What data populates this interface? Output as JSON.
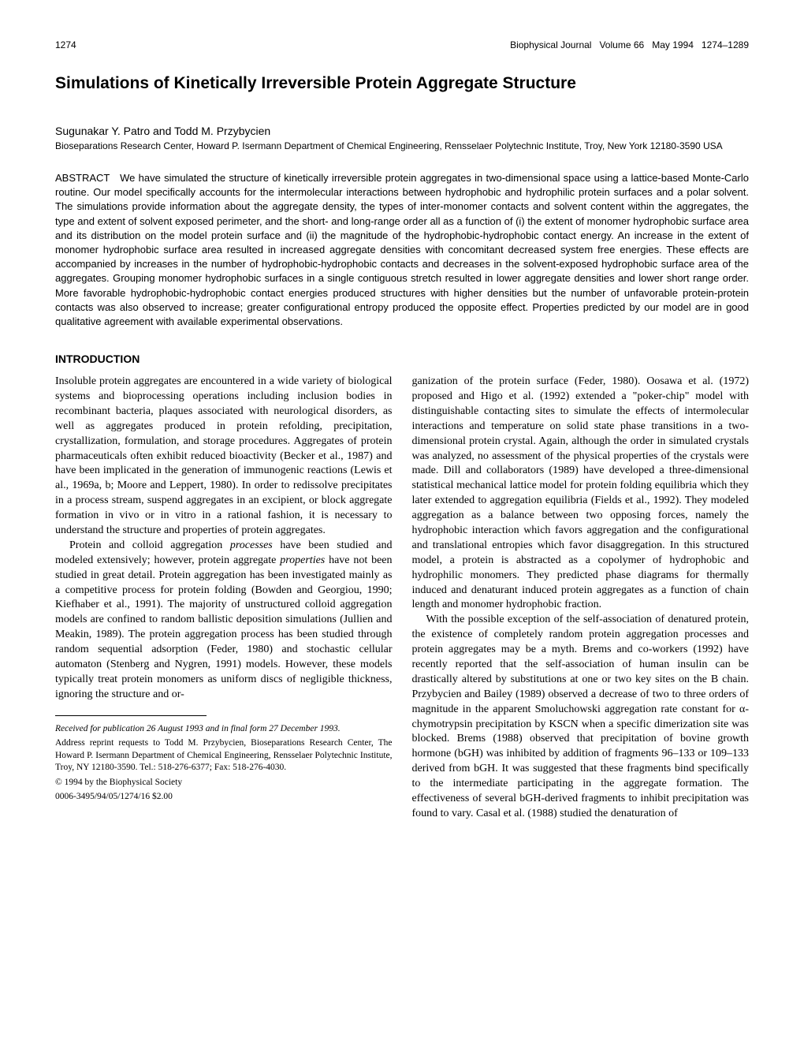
{
  "header": {
    "page_number": "1274",
    "journal": "Biophysical Journal",
    "volume": "Volume 66",
    "date": "May 1994",
    "pages": "1274–1289"
  },
  "title": "Simulations of Kinetically Irreversible Protein Aggregate Structure",
  "authors": "Sugunakar Y. Patro and Todd M. Przybycien",
  "affiliation": "Bioseparations Research Center, Howard P. Isermann Department of Chemical Engineering, Rensselaer Polytechnic Institute, Troy, New York 12180-3590 USA",
  "abstract_label": "ABSTRACT",
  "abstract": "We have simulated the structure of kinetically irreversible protein aggregates in two-dimensional space using a lattice-based Monte-Carlo routine. Our model specifically accounts for the intermolecular interactions between hydrophobic and hydrophilic protein surfaces and a polar solvent. The simulations provide information about the aggregate density, the types of inter-monomer contacts and solvent content within the aggregates, the type and extent of solvent exposed perimeter, and the short- and long-range order all as a function of (i) the extent of monomer hydrophobic surface area and its distribution on the model protein surface and (ii) the magnitude of the hydrophobic-hydrophobic contact energy. An increase in the extent of monomer hydrophobic surface area resulted in increased aggregate densities with concomitant decreased system free energies. These effects are accompanied by increases in the number of hydrophobic-hydrophobic contacts and decreases in the solvent-exposed hydrophobic surface area of the aggregates. Grouping monomer hydrophobic surfaces in a single contiguous stretch resulted in lower aggregate densities and lower short range order. More favorable hydrophobic-hydrophobic contact energies produced structures with higher densities but the number of unfavorable protein-protein contacts was also observed to increase; greater configurational entropy produced the opposite effect. Properties predicted by our model are in good qualitative agreement with available experimental observations.",
  "section_heading": "INTRODUCTION",
  "body": {
    "p1": "Insoluble protein aggregates are encountered in a wide variety of biological systems and bioprocessing operations including inclusion bodies in recombinant bacteria, plaques associated with neurological disorders, as well as aggregates produced in protein refolding, precipitation, crystallization, formulation, and storage procedures. Aggregates of protein pharmaceuticals often exhibit reduced bioactivity (Becker et al., 1987) and have been implicated in the generation of immunogenic reactions (Lewis et al., 1969a, b; Moore and Leppert, 1980). In order to redissolve precipitates in a process stream, suspend aggregates in an excipient, or block aggregate formation in vivo or in vitro in a rational fashion, it is necessary to understand the structure and properties of protein aggregates.",
    "p2a": "Protein and colloid aggregation ",
    "p2i1": "processes",
    "p2b": " have been studied and modeled extensively; however, protein aggregate ",
    "p2i2": "properties",
    "p2c": " have not been studied in great detail. Protein aggregation has been investigated mainly as a competitive process for protein folding (Bowden and Georgiou, 1990; Kiefhaber et al., 1991). The majority of unstructured colloid aggregation models are confined to random ballistic deposition simulations (Jullien and Meakin, 1989). The protein aggregation process has been studied through random sequential adsorption (Feder, 1980) and stochastic cellular automaton (Stenberg and Nygren, 1991) models. However, these models typically treat protein monomers as uniform discs of negligible thickness, ignoring the structure and or-",
    "p3": "ganization of the protein surface (Feder, 1980). Oosawa et al. (1972) proposed and Higo et al. (1992) extended a \"poker-chip\" model with distinguishable contacting sites to simulate the effects of intermolecular interactions and temperature on solid state phase transitions in a two-dimensional protein crystal. Again, although the order in simulated crystals was analyzed, no assessment of the physical properties of the crystals were made. Dill and collaborators (1989) have developed a three-dimensional statistical mechanical lattice model for protein folding equilibria which they later extended to aggregation equilibria (Fields et al., 1992). They modeled aggregation as a balance between two opposing forces, namely the hydrophobic interaction which favors aggregation and the configurational and translational entropies which favor disaggregation. In this structured model, a protein is abstracted as a copolymer of hydrophobic and hydrophilic monomers. They predicted phase diagrams for thermally induced and denaturant induced protein aggregates as a function of chain length and monomer hydrophobic fraction.",
    "p4": "With the possible exception of the self-association of denatured protein, the existence of completely random protein aggregation processes and protein aggregates may be a myth. Brems and co-workers (1992) have recently reported that the self-association of human insulin can be drastically altered by substitutions at one or two key sites on the B chain. Przybycien and Bailey (1989) observed a decrease of two to three orders of magnitude in the apparent Smoluchowski aggregation rate constant for α-chymotrypsin precipitation by KSCN when a specific dimerization site was blocked. Brems (1988) observed that precipitation of bovine growth hormone (bGH) was inhibited by addition of fragments 96–133 or 109–133 derived from bGH. It was suggested that these fragments bind specifically to the intermediate participating in the aggregate formation. The effectiveness of several bGH-derived fragments to inhibit precipitation was found to vary. Casal et al. (1988) studied the denaturation of"
  },
  "footer": {
    "received": "Received for publication 26 August 1993 and in final form 27 December 1993.",
    "reprint": "Address reprint requests to Todd M. Przybycien, Bioseparations Research Center, The Howard P. Isermann Department of Chemical Engineering, Rensselaer Polytechnic Institute, Troy, NY 12180-3590. Tel.: 518-276-6377; Fax: 518-276-4030.",
    "copyright": "© 1994 by the Biophysical Society",
    "code": "0006-3495/94/05/1274/16   $2.00"
  }
}
